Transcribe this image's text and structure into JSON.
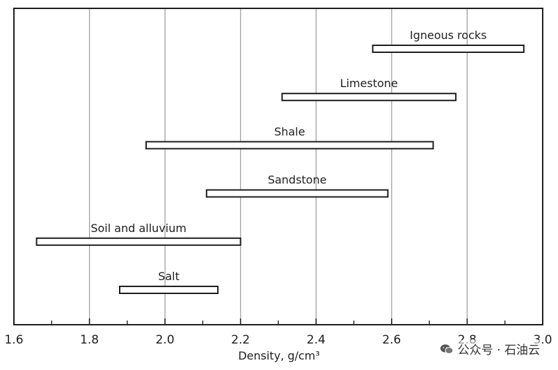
{
  "chart_data": {
    "type": "bar",
    "orientation": "horizontal-range",
    "categories": [
      "Igneous rocks",
      "Limestone",
      "Shale",
      "Sandstone",
      "Soil and alluvium",
      "Salt"
    ],
    "ranges": [
      {
        "name": "Igneous rocks",
        "min": 2.55,
        "max": 2.95
      },
      {
        "name": "Limestone",
        "min": 2.31,
        "max": 2.77
      },
      {
        "name": "Shale",
        "min": 1.95,
        "max": 2.71
      },
      {
        "name": "Sandstone",
        "min": 2.11,
        "max": 2.59
      },
      {
        "name": "Soil and alluvium",
        "min": 1.66,
        "max": 2.2
      },
      {
        "name": "Salt",
        "min": 1.88,
        "max": 2.14
      }
    ],
    "xlim": [
      1.6,
      3.0
    ],
    "xticks": [
      "1.6",
      "1.8",
      "2.0",
      "2.2",
      "2.4",
      "2.6",
      "2.8",
      "3.0"
    ],
    "xlabel": "Density, g/cm³",
    "ylabel": "",
    "title": "",
    "grid": "vertical"
  },
  "watermark": {
    "text": "公众号 · 石油云",
    "icon": "wechat-icon"
  }
}
